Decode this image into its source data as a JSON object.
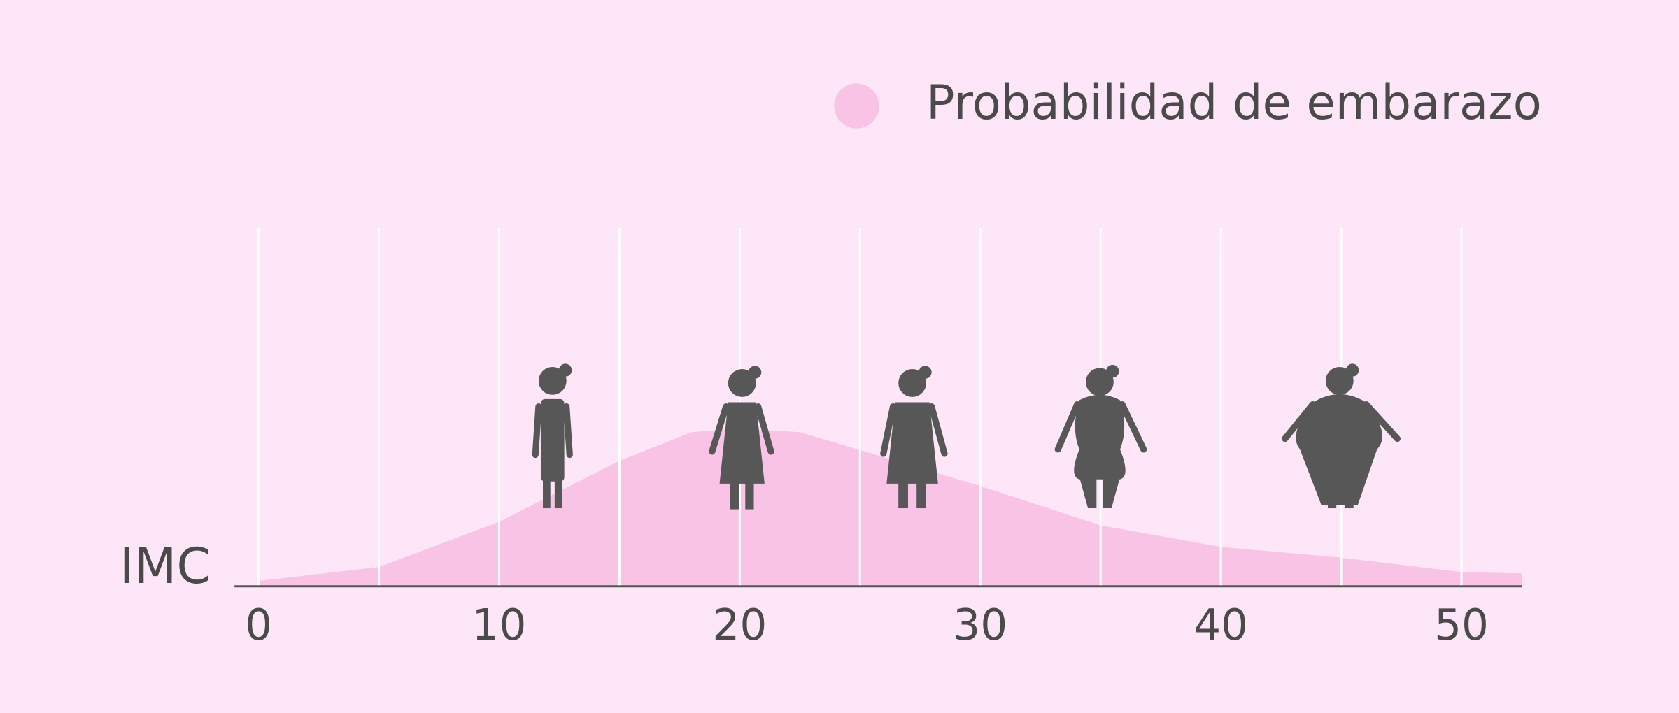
{
  "chart_data": {
    "type": "area",
    "x_label": "IMC",
    "series": [
      {
        "name": "Probabilidad de embarazo",
        "color": "#f9c3e6",
        "x": [
          0,
          5,
          10,
          15,
          18,
          20,
          22.5,
          25,
          30,
          35,
          40,
          45,
          50,
          52.5
        ],
        "values": [
          0.015,
          0.054,
          0.18,
          0.35,
          0.43,
          0.44,
          0.43,
          0.38,
          0.28,
          0.17,
          0.11,
          0.08,
          0.04,
          0.036
        ]
      }
    ],
    "xlim": [
      -1,
      52.5
    ],
    "ylim": [
      0,
      1
    ],
    "xticks": [
      0,
      10,
      20,
      30,
      40,
      50
    ],
    "grid_x": [
      0,
      5,
      10,
      15,
      20,
      25,
      30,
      35,
      40,
      45,
      50
    ],
    "legend": "top-right"
  }
}
